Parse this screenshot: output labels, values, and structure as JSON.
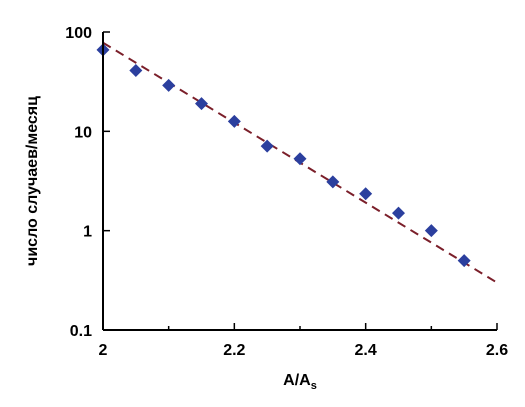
{
  "chart_data": {
    "type": "scatter",
    "title": "",
    "xlabel": "A/A",
    "xlabel_subscript": "s",
    "ylabel": "число случаев/месяц",
    "xlim": [
      2.0,
      2.6
    ],
    "ylim": [
      0.1,
      100
    ],
    "yscale": "log",
    "grid": false,
    "x_ticks": [
      2.0,
      2.2,
      2.4,
      2.6
    ],
    "x_tick_labels": [
      "2",
      "2.2",
      "2.4",
      "2.6"
    ],
    "y_ticks": [
      0.1,
      1,
      10,
      100
    ],
    "y_tick_labels": [
      "0.1",
      "1",
      "10",
      "100"
    ],
    "series": [
      {
        "kind": "points",
        "marker": "diamond",
        "color": "#2b3f9e",
        "x": [
          2.0,
          2.05,
          2.1,
          2.15,
          2.2,
          2.25,
          2.3,
          2.35,
          2.4,
          2.45,
          2.5,
          2.55
        ],
        "y": [
          66,
          41,
          29,
          19,
          12.6,
          7.1,
          5.3,
          3.1,
          2.35,
          1.5,
          1.0,
          0.5
        ]
      },
      {
        "kind": "fit-line",
        "style": "dashed",
        "color": "#7b1f2a",
        "x": [
          2.0,
          2.6
        ],
        "y": [
          78,
          0.3
        ]
      }
    ]
  }
}
